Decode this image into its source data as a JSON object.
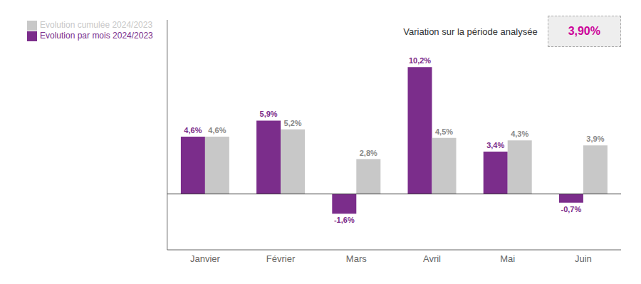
{
  "chart_data": {
    "type": "bar",
    "categories": [
      "Janvier",
      "Février",
      "Mars",
      "Avril",
      "Mai",
      "Juin"
    ],
    "series": [
      {
        "name": "Evolution par mois 2024/2023",
        "color": "#7B2D8B",
        "values": [
          4.6,
          5.9,
          -1.6,
          10.2,
          3.4,
          -0.7
        ],
        "value_labels": [
          "4,6%",
          "5,9%",
          "-1,6%",
          "10,2%",
          "3,4%",
          "-0,7%"
        ]
      },
      {
        "name": "Evolution cumulée 2024/2023",
        "color": "#C8C8C8",
        "values": [
          4.6,
          5.2,
          2.8,
          4.5,
          4.3,
          3.9
        ],
        "value_labels": [
          "4,6%",
          "5,2%",
          "2,8%",
          "4,5%",
          "4,3%",
          "3,9%"
        ]
      }
    ],
    "ylim": [
      -4.5,
      14
    ],
    "grid": false,
    "legend": "upper left",
    "data_labels": true,
    "tick_labels": "x",
    "annotations": [
      {
        "text": "Variation sur la période analysée"
      },
      {
        "text": "3,90%",
        "color": "#CC0099"
      }
    ]
  }
}
